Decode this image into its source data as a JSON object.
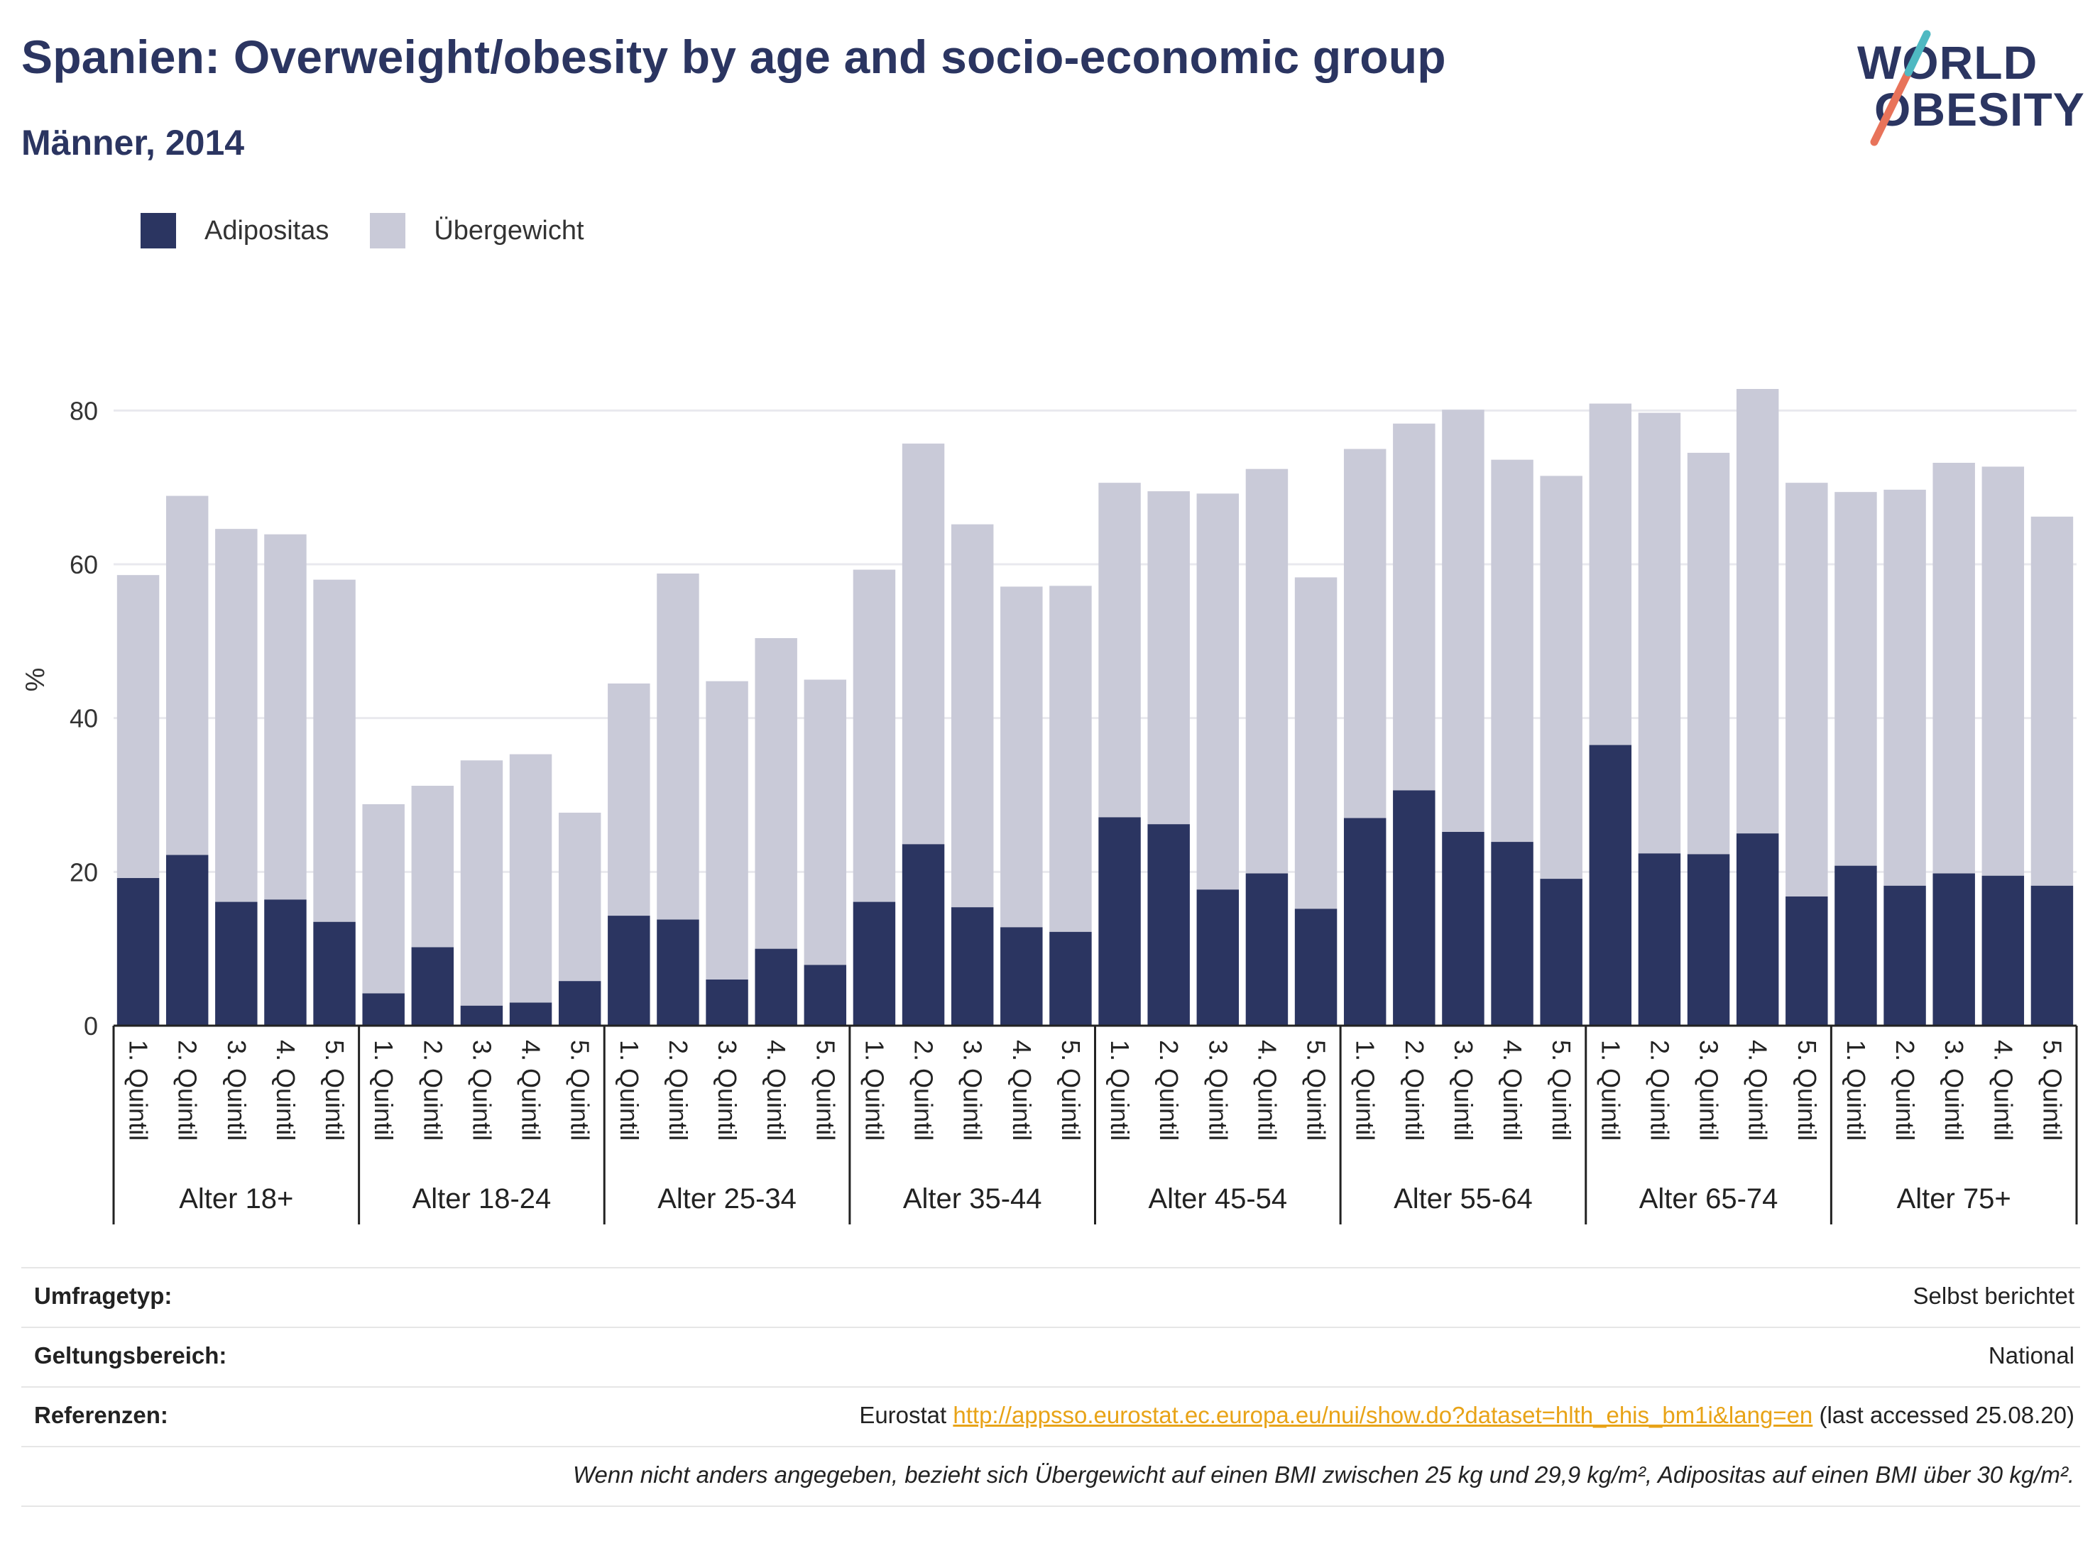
{
  "title": "Spanien: Overweight/obesity by age and socio-economic group",
  "subtitle": "Männer, 2014",
  "logo": {
    "line1": "WORLD",
    "line2": "OBESITY",
    "accent": "#e8735a",
    "accent2": "#4fb9c2",
    "color": "#2b3561"
  },
  "colors": {
    "obesity": "#2b3561",
    "overweight": "#c9cad8",
    "grid": "#e9e9ee",
    "axis": "#222222"
  },
  "legend": [
    {
      "label": "Adipositas",
      "color": "#2b3561"
    },
    {
      "label": "Übergewicht",
      "color": "#c9cad8"
    }
  ],
  "chart_data": {
    "type": "bar",
    "stacked": true,
    "ylabel": "%",
    "ylim": [
      0,
      90
    ],
    "yticks": [
      0,
      20,
      40,
      60,
      80
    ],
    "grid": true,
    "legend_position": "top-left",
    "groups": [
      "Alter 18+",
      "Alter 18-24",
      "Alter 25-34",
      "Alter 35-44",
      "Alter 45-54",
      "Alter 55-64",
      "Alter 65-74",
      "Alter 75+"
    ],
    "categories": [
      "1. Quintil",
      "2. Quintil",
      "3. Quintil",
      "4. Quintil",
      "5. Quintil"
    ],
    "series": [
      {
        "name": "Adipositas",
        "values": [
          [
            19.2,
            22.2,
            16.1,
            16.4,
            13.5
          ],
          [
            4.2,
            10.2,
            2.6,
            3.0,
            5.8
          ],
          [
            14.3,
            13.8,
            6.0,
            10.0,
            7.9
          ],
          [
            16.1,
            23.6,
            15.4,
            12.8,
            12.2
          ],
          [
            27.1,
            26.2,
            17.7,
            19.8,
            15.2
          ],
          [
            27.0,
            30.6,
            25.2,
            23.9,
            19.1
          ],
          [
            36.5,
            22.4,
            22.3,
            25.0,
            16.8
          ],
          [
            20.8,
            18.2,
            19.8,
            19.5,
            18.2
          ]
        ]
      },
      {
        "name": "Übergewicht",
        "values": [
          [
            39.4,
            46.7,
            48.5,
            47.5,
            44.5
          ],
          [
            24.6,
            21.0,
            31.9,
            32.3,
            21.9
          ],
          [
            30.2,
            45.0,
            38.8,
            40.4,
            37.1
          ],
          [
            43.2,
            52.1,
            49.8,
            44.3,
            45.0
          ],
          [
            43.5,
            43.3,
            51.5,
            52.6,
            43.1
          ],
          [
            48.0,
            47.7,
            54.9,
            49.7,
            52.4
          ],
          [
            44.4,
            57.3,
            52.2,
            57.8,
            53.8
          ],
          [
            48.6,
            51.5,
            53.4,
            53.2,
            48.0
          ]
        ]
      }
    ]
  },
  "footer": {
    "survey_label": "Umfragetyp:",
    "survey_value": "Selbst berichtet",
    "scope_label": "Geltungsbereich:",
    "scope_value": "National",
    "refs_label": "Referenzen:",
    "refs_prefix": "Eurostat ",
    "refs_link": "http://appsso.eurostat.ec.europa.eu/nui/show.do?dataset=hlth_ehis_bm1i&lang=en",
    "refs_suffix": " (last accessed 25.08.20)",
    "note": "Wenn nicht anders angegeben, bezieht sich Übergewicht auf einen BMI zwischen 25 kg und 29,9 kg/m², Adipositas auf einen BMI über 30 kg/m²."
  }
}
